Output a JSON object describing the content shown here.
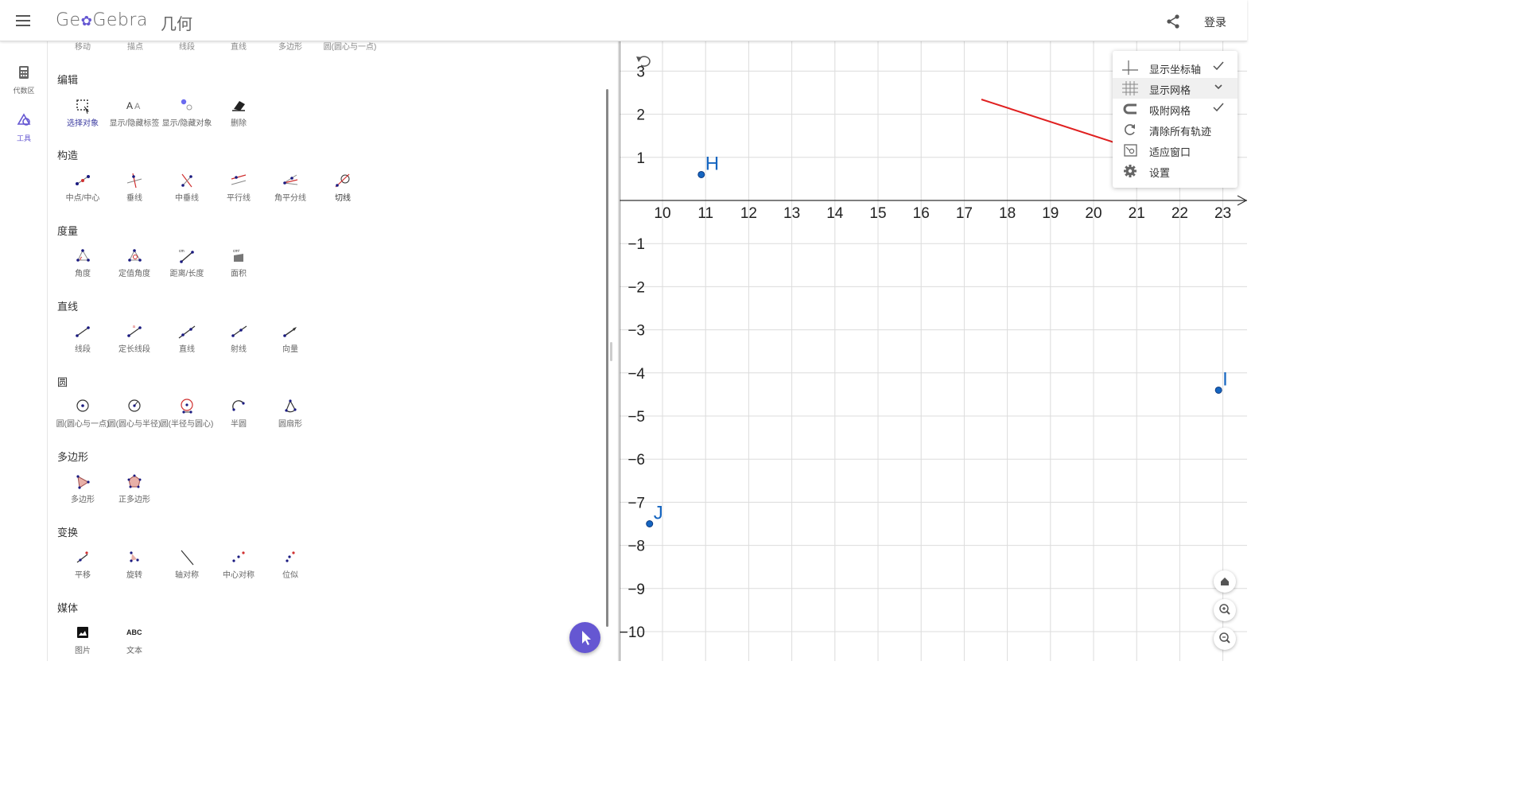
{
  "header": {
    "logo_text": "GeoGebra",
    "app_name": "几何",
    "login_label": "登录"
  },
  "rail": {
    "algebra_label": "代数区",
    "tools_label": "工具"
  },
  "top_row": [
    "移动",
    "描点",
    "线段",
    "直线",
    "多边形",
    "圆(圆心与一点)"
  ],
  "sections": [
    {
      "title": "编辑",
      "tools": [
        "选择对象",
        "显示/隐藏标签",
        "显示/隐藏对象",
        "删除"
      ]
    },
    {
      "title": "构造",
      "tools": [
        "中点/中心",
        "垂线",
        "中垂线",
        "平行线",
        "角平分线",
        "切线"
      ]
    },
    {
      "title": "度量",
      "tools": [
        "角度",
        "定值角度",
        "距离/长度",
        "面积"
      ]
    },
    {
      "title": "直线",
      "tools": [
        "线段",
        "定长线段",
        "直线",
        "射线",
        "向量"
      ]
    },
    {
      "title": "圆",
      "tools": [
        "圆(圆心与一点)",
        "圆(圆心与半径)",
        "圆(半径与圆心)",
        "半圆",
        "圆扇形"
      ]
    },
    {
      "title": "多边形",
      "tools": [
        "多边形",
        "正多边形"
      ]
    },
    {
      "title": "变换",
      "tools": [
        "平移",
        "旋转",
        "轴对称",
        "中心对称",
        "位似"
      ]
    },
    {
      "title": "媒体",
      "tools": [
        "图片",
        "文本"
      ]
    }
  ],
  "style_menu": [
    {
      "label": "显示坐标轴",
      "icon": "axes-icon",
      "checked": true
    },
    {
      "label": "显示网格",
      "icon": "grid-icon",
      "checked": false,
      "dropdown": true
    },
    {
      "label": "吸附网格",
      "icon": "magnet-icon",
      "checked": true
    },
    {
      "label": "清除所有轨迹",
      "icon": "refresh-icon",
      "checked": false
    },
    {
      "label": "适应窗口",
      "icon": "fit-window-icon",
      "checked": false
    },
    {
      "label": "设置",
      "icon": "gear-icon",
      "checked": false
    }
  ],
  "graph": {
    "x_ticks": [
      "10",
      "11",
      "12",
      "13",
      "14",
      "15",
      "16",
      "17",
      "18",
      "19",
      "20",
      "21",
      "22",
      "23"
    ],
    "y_ticks": [
      "3",
      "2",
      "1",
      "−1",
      "−2",
      "−3",
      "−4",
      "−5",
      "−6",
      "−7",
      "−8",
      "−9",
      "−10"
    ],
    "points": [
      {
        "name": "H",
        "x": 10.9,
        "y": 0.6
      },
      {
        "name": "I",
        "x": 22.9,
        "y": -4.4
      },
      {
        "name": "J",
        "x": 9.7,
        "y": -7.5
      }
    ],
    "point_color": "#1565c0",
    "annotation_arrow_color": "#e02020"
  }
}
